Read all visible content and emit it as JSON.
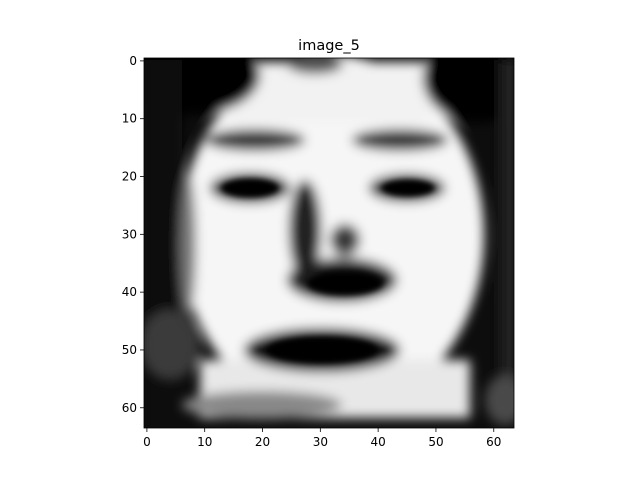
{
  "chart_data": {
    "type": "heatmap",
    "title": "image_5",
    "xlabel": "",
    "ylabel": "",
    "colormap": "gray",
    "image_size": [
      64,
      64
    ],
    "xlim": [
      -0.5,
      63.5
    ],
    "ylim": [
      63.5,
      -0.5
    ],
    "x_ticks": [
      "0",
      "10",
      "20",
      "30",
      "40",
      "50",
      "60"
    ],
    "y_ticks": [
      "0",
      "10",
      "20",
      "30",
      "40",
      "50",
      "60"
    ],
    "grid": false,
    "legend": "none",
    "content": "grayscale face image",
    "colors": {
      "low": "#000000",
      "high": "#ffffff",
      "axis": "#000000"
    }
  }
}
